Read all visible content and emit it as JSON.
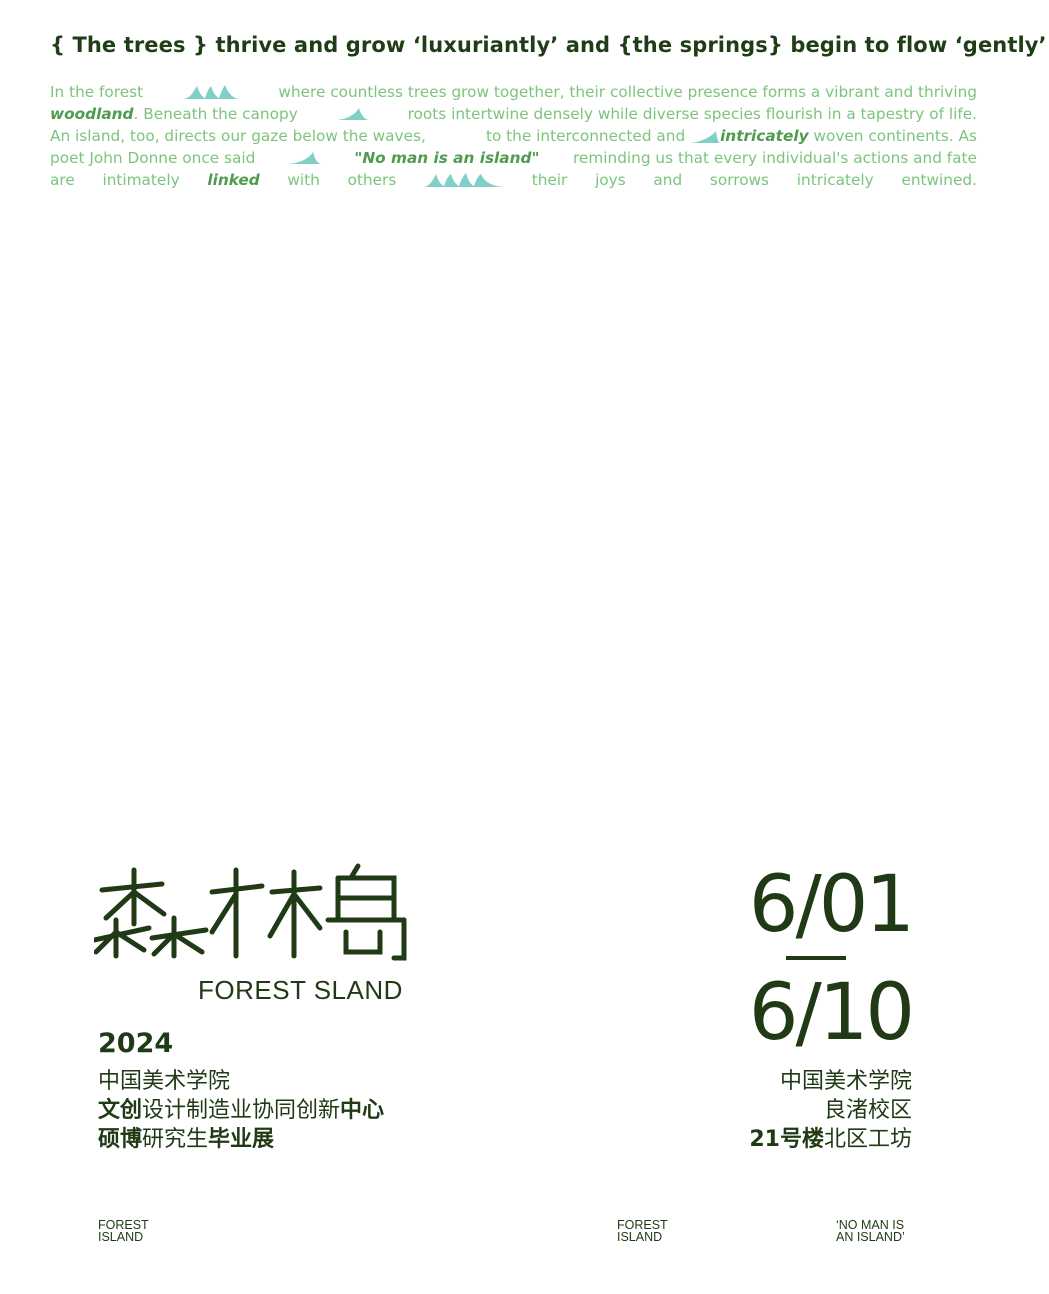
{
  "headline": "{ The trees } thrive and grow ‘luxuriantly’ and {the springs} begin to flow ‘gently’",
  "body": {
    "l1": [
      "In the forest",
      "where countless trees grow together, their collective presence forms a vibrant and thriving"
    ],
    "l2": [
      "woodland",
      ". Beneath the canopy",
      "roots intertwine densely while diverse species flourish in a tapestry of life."
    ],
    "l3": [
      "An island, too, directs our gaze below the waves,",
      "to the interconnected and",
      "intricately",
      " woven continents. As"
    ],
    "l4": [
      "poet John Donne once said",
      "\"No man is an island\"",
      "reminding us that every individual's actions and fate"
    ],
    "l5": [
      "are",
      "intimately",
      "linked",
      "with",
      "others",
      "their",
      "joys",
      "and",
      "sorrows",
      "intricately",
      "entwined."
    ]
  },
  "title_cn": "森林岛",
  "title_en": "FOREST SLAND",
  "year": "2024",
  "left": {
    "line1": "中国美术学院",
    "line2_b1": "文创",
    "line2_n": "设计制造业协同创新",
    "line2_b2": "中心",
    "line3_b1": "硕博",
    "line3_n": "研究生",
    "line3_b2": "毕业展"
  },
  "dates": {
    "start": "6/01",
    "end": "6/10"
  },
  "right": {
    "line1": "中国美术学院",
    "line2": "良渚校区",
    "line3_b": "21号楼",
    "line3_n": "北区工坊"
  },
  "footer": {
    "left": "FOREST\nISLAND",
    "middle": "FOREST\nISLAND",
    "right": "‘NO MAN IS\nAN ISLAND’"
  },
  "colors": {
    "dark_green": "#1f3a14",
    "light_green": "#7cc47c",
    "wave_teal": "#7fd1c8"
  }
}
